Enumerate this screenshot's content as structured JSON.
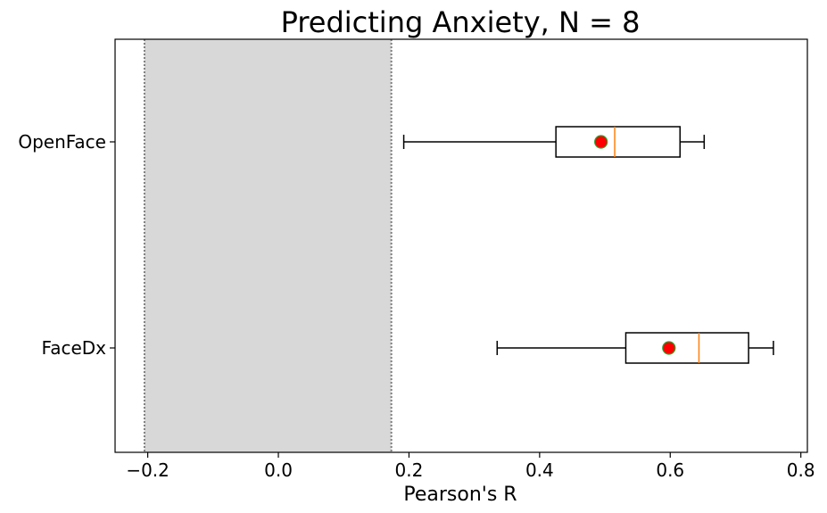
{
  "chart_data": {
    "type": "boxplot",
    "title": "Predicting Anxiety, N = 8",
    "xlabel": "Pearson's R",
    "ylabel": "",
    "xlim": [
      -0.25,
      0.81
    ],
    "xticks": [
      -0.2,
      0.0,
      0.2,
      0.4,
      0.6,
      0.8
    ],
    "xtick_labels": [
      "−0.2",
      "0.0",
      "0.2",
      "0.4",
      "0.6",
      "0.8"
    ],
    "grid": false,
    "legend": "none",
    "shaded_region": {
      "x0": -0.205,
      "x1": 0.173,
      "color": "#d8d8d8",
      "edge_style": "dotted",
      "edge_color": "#808080"
    },
    "categories": [
      "OpenFace",
      "FaceDx"
    ],
    "boxes": [
      {
        "label": "OpenFace",
        "whisker_low": 0.192,
        "q1": 0.425,
        "median": 0.515,
        "q3": 0.615,
        "whisker_high": 0.652,
        "mean": 0.494
      },
      {
        "label": "FaceDx",
        "whisker_low": 0.335,
        "q1": 0.532,
        "median": 0.644,
        "q3": 0.72,
        "whisker_high": 0.758,
        "mean": 0.598
      }
    ],
    "colors": {
      "box": "#000000",
      "median": "#ff7f0e",
      "mean_fill": "#ff0000",
      "mean_edge": "#2ca02c",
      "shade": "#d8d8d8"
    }
  }
}
